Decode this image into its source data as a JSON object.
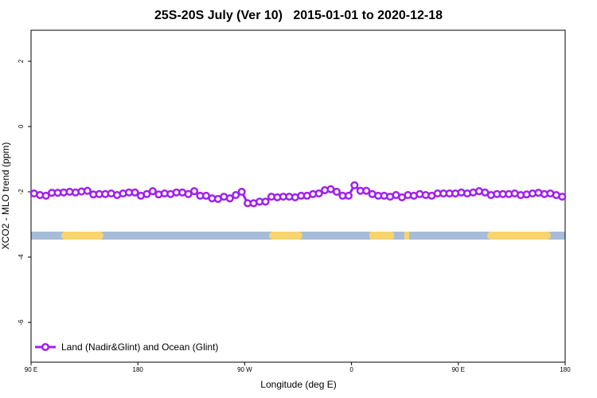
{
  "chart_data": {
    "type": "line",
    "title": "25S-20S July (Ver 10)   2015-01-01 to 2020-12-18",
    "x_label": "Longitude (deg E)",
    "y_label": "XCO2 - MLO trend (ppm)",
    "x": [
      92.5,
      97.5,
      102.5,
      107.5,
      112.5,
      117.5,
      122.5,
      127.5,
      132.5,
      137.5,
      142.5,
      147.5,
      152.5,
      157.5,
      162.5,
      167.5,
      172.5,
      177.5,
      182.5,
      187.5,
      192.5,
      197.5,
      202.5,
      207.5,
      212.5,
      217.5,
      222.5,
      227.5,
      232.5,
      237.5,
      242.5,
      247.5,
      252.5,
      257.5,
      262.5,
      267.5,
      272.5,
      277.5,
      282.5,
      287.5,
      292.5,
      297.5,
      302.5,
      307.5,
      312.5,
      317.5,
      322.5,
      327.5,
      332.5,
      337.5,
      342.5,
      347.5,
      352.5,
      357.5,
      362.5,
      367.5,
      372.5,
      377.5,
      382.5,
      387.5,
      392.5,
      397.5,
      402.5,
      407.5,
      412.5,
      417.5,
      422.5,
      427.5,
      432.5,
      437.5,
      442.5,
      447.5,
      452.5,
      457.5,
      462.5,
      467.5,
      472.5,
      477.5,
      482.5,
      487.5,
      492.5,
      497.5,
      502.5,
      507.5,
      512.5,
      517.5,
      522.5,
      527.5,
      532.5,
      537.5
    ],
    "series": [
      {
        "name": "Land (Nadir&Glint) and Ocean (Glint)",
        "color": "#a020f0",
        "values": [
          -2.05,
          -2.1,
          -2.12,
          -2.03,
          -2.03,
          -2.02,
          -2.0,
          -2.02,
          -1.99,
          -1.97,
          -2.08,
          -2.07,
          -2.07,
          -2.05,
          -2.1,
          -2.05,
          -2.02,
          -2.02,
          -2.12,
          -2.07,
          -1.98,
          -2.08,
          -2.05,
          -2.07,
          -2.02,
          -2.02,
          -2.07,
          -1.98,
          -2.12,
          -2.12,
          -2.2,
          -2.22,
          -2.15,
          -2.2,
          -2.1,
          -2.0,
          -2.35,
          -2.35,
          -2.3,
          -2.3,
          -2.15,
          -2.17,
          -2.15,
          -2.15,
          -2.17,
          -2.12,
          -2.12,
          -2.07,
          -2.05,
          -1.95,
          -1.92,
          -2.0,
          -2.12,
          -2.12,
          -1.8,
          -1.97,
          -1.97,
          -2.07,
          -2.12,
          -2.12,
          -2.15,
          -2.1,
          -2.17,
          -2.1,
          -2.12,
          -2.07,
          -2.1,
          -2.12,
          -2.05,
          -2.05,
          -2.05,
          -2.05,
          -2.02,
          -2.05,
          -2.02,
          -1.98,
          -2.02,
          -2.1,
          -2.07,
          -2.07,
          -2.07,
          -2.05,
          -2.1,
          -2.08,
          -2.05,
          -2.03,
          -2.07,
          -2.05,
          -2.1,
          -2.15
        ]
      }
    ],
    "xlim": [
      90,
      540
    ],
    "xticks": [
      {
        "value": 90,
        "label": "90 E"
      },
      180,
      {
        "value": 270,
        "label": "90 W"
      },
      {
        "value": 360,
        "label": "0"
      },
      {
        "value": 450,
        "label": "90 E"
      },
      {
        "value": 540,
        "label": "180"
      }
    ],
    "ylim": [
      -7.22,
      2.95
    ],
    "yticks": [
      -6,
      -4,
      -2,
      0,
      2
    ],
    "legend": "bottom-left"
  }
}
